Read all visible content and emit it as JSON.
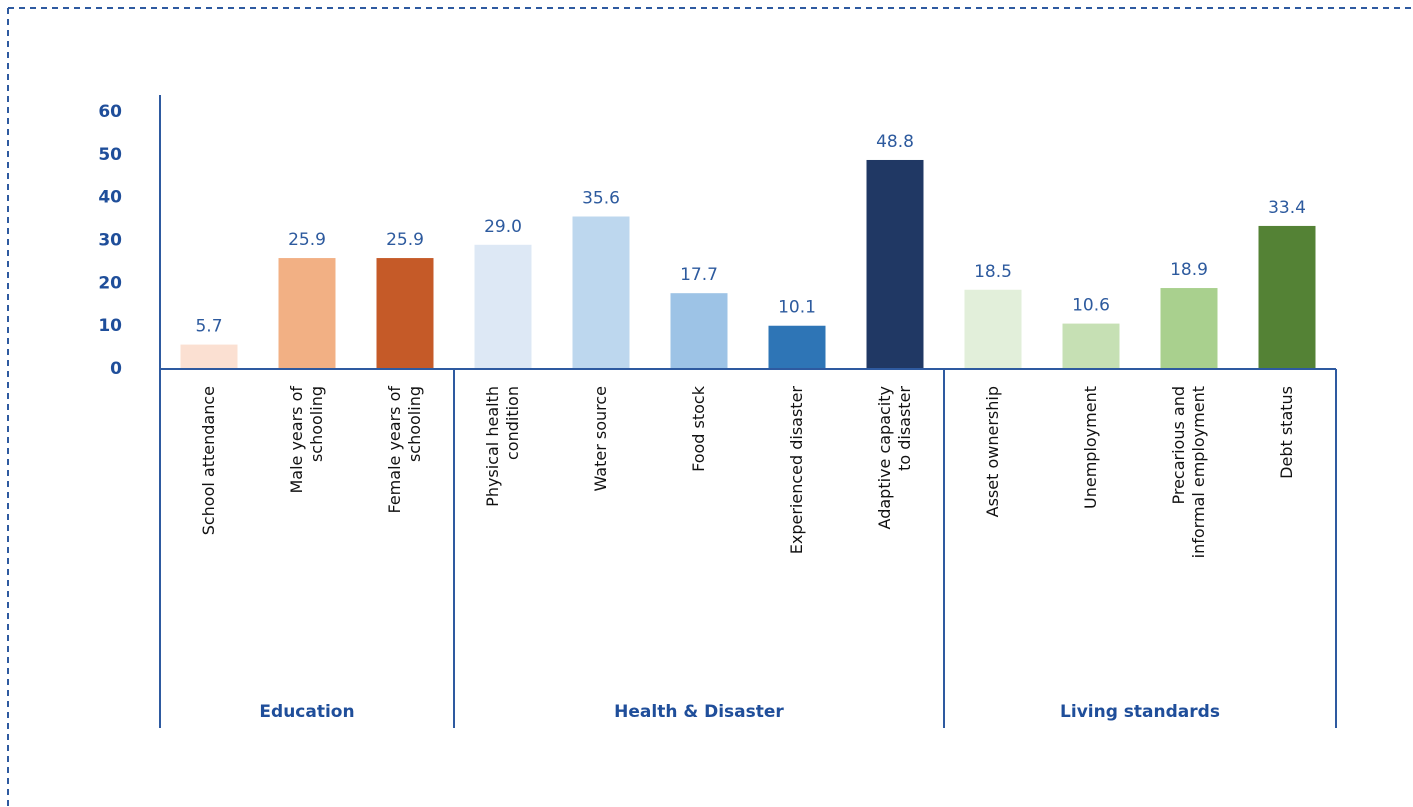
{
  "chart_data": {
    "type": "bar",
    "ylim": [
      0,
      60
    ],
    "yticks": [
      0,
      10,
      20,
      30,
      40,
      50,
      60
    ],
    "groups": [
      {
        "name": "Education",
        "categories": [
          [
            "School attendance"
          ],
          [
            "Male years of",
            "schooling"
          ],
          [
            "Female years of",
            "schooling"
          ]
        ],
        "values": [
          5.7,
          25.9,
          25.9
        ],
        "colors": [
          "#fbe0d2",
          "#f2b084",
          "#c55a28"
        ]
      },
      {
        "name": "Health & Disaster",
        "categories": [
          [
            "Physical health",
            "condition"
          ],
          [
            "Water source"
          ],
          [
            "Food stock"
          ],
          [
            "Experienced disaster"
          ],
          [
            "Adaptive capacity",
            "to disaster"
          ]
        ],
        "values": [
          29.0,
          35.6,
          17.7,
          10.1,
          48.8
        ],
        "value_labels": [
          "29.0",
          "35.6",
          "17.7",
          "10.1",
          "48.8"
        ],
        "colors": [
          "#dde8f5",
          "#bdd7ee",
          "#9dc3e6",
          "#2e75b6",
          "#203864"
        ]
      },
      {
        "name": "Living standards",
        "categories": [
          [
            "Asset ownership"
          ],
          [
            "Unemployment"
          ],
          [
            "Precarious and",
            "informal employment"
          ],
          [
            "Debt status"
          ]
        ],
        "values": [
          18.5,
          10.6,
          18.9,
          33.4
        ],
        "colors": [
          "#e2efda",
          "#c6e0b4",
          "#a9d08e",
          "#548235"
        ]
      }
    ]
  }
}
